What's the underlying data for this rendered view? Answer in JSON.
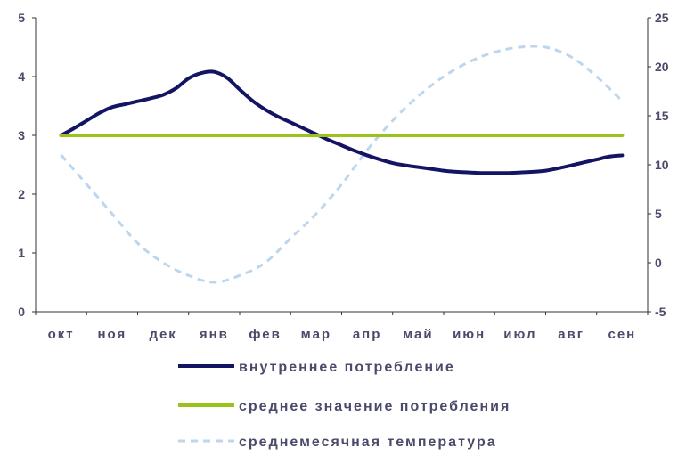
{
  "chart_data": {
    "type": "line",
    "categories": [
      "окт",
      "ноя",
      "дек",
      "янв",
      "фев",
      "мар",
      "апр",
      "май",
      "июн",
      "июл",
      "авг",
      "сен"
    ],
    "y_left": {
      "ylim": [
        0,
        5
      ],
      "ticks": [
        "0",
        "1",
        "2",
        "3",
        "4",
        "5"
      ]
    },
    "y_right": {
      "ylim": [
        -5,
        25
      ],
      "ticks": [
        "-5",
        "0",
        "5",
        "10",
        "15",
        "20",
        "25"
      ]
    },
    "series": [
      {
        "name": "внутреннее потребление",
        "axis": "left",
        "style": "solid",
        "color": "#141464",
        "x": [
          0,
          0.25,
          0.5,
          0.75,
          1,
          1.25,
          1.5,
          1.75,
          2,
          2.25,
          2.5,
          2.75,
          3,
          3.25,
          3.5,
          3.75,
          4,
          4.25,
          4.5,
          4.75,
          5,
          5.25,
          5.5,
          5.75,
          6,
          6.25,
          6.5,
          6.75,
          7,
          7.25,
          7.5,
          7.75,
          8,
          8.25,
          8.5,
          8.75,
          9,
          9.25,
          9.5,
          9.75,
          10,
          10.25,
          10.5,
          10.75,
          11
        ],
        "values": [
          3.0,
          3.12,
          3.25,
          3.38,
          3.48,
          3.53,
          3.58,
          3.63,
          3.69,
          3.8,
          3.97,
          4.06,
          4.08,
          3.98,
          3.78,
          3.59,
          3.44,
          3.32,
          3.22,
          3.12,
          3.02,
          2.92,
          2.83,
          2.74,
          2.66,
          2.59,
          2.53,
          2.49,
          2.46,
          2.43,
          2.4,
          2.38,
          2.37,
          2.36,
          2.36,
          2.36,
          2.37,
          2.38,
          2.4,
          2.44,
          2.49,
          2.54,
          2.59,
          2.64,
          2.66
        ]
      },
      {
        "name": "среднее значение потребления",
        "axis": "left",
        "style": "solid",
        "color": "#99c31b",
        "x": [
          0,
          11
        ],
        "values": [
          3.0,
          3.0
        ]
      },
      {
        "name": "среднемесячная температура",
        "axis": "right",
        "style": "dashed",
        "color": "#bcd6ee",
        "x": [
          0,
          0.5,
          1,
          1.5,
          2,
          2.5,
          3,
          3.5,
          4,
          4.5,
          5,
          5.5,
          6,
          6.5,
          7,
          7.5,
          8,
          8.5,
          9,
          9.5,
          10,
          10.5,
          11
        ],
        "values": [
          11,
          8,
          5,
          2,
          0,
          -1.3,
          -2,
          -1.3,
          0,
          2.5,
          5,
          8,
          11.5,
          14.5,
          17,
          19,
          20.5,
          21.5,
          22,
          22,
          21,
          19,
          16.5
        ]
      }
    ],
    "legend_position": "bottom",
    "grid": false
  }
}
